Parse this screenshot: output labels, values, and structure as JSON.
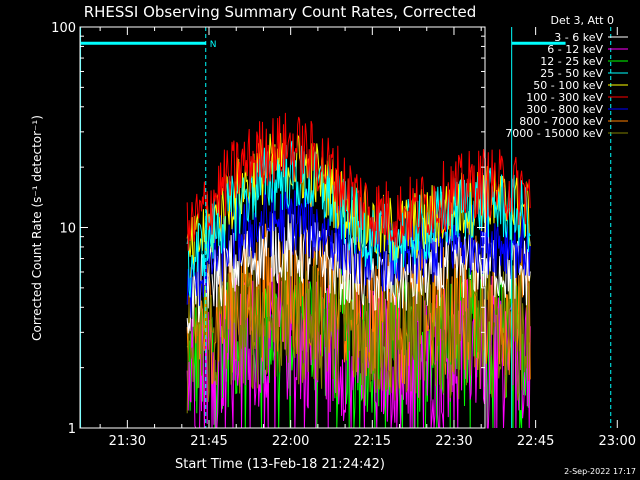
{
  "chart_data": {
    "type": "line",
    "title": "RHESSI Observing Summary Count Rates, Corrected",
    "xlabel": "Start Time (13-Feb-18 21:24:42)",
    "ylabel": "Corrected Count Rate (s⁻¹ detector⁻¹)",
    "yscale": "log",
    "ylim": [
      1,
      100
    ],
    "xlim_minutes": [
      21.3,
      95.7
    ],
    "x_ticks": [
      {
        "label": "21:30",
        "min": 30
      },
      {
        "label": "21:45",
        "min": 45
      },
      {
        "label": "22:00",
        "min": 60
      },
      {
        "label": "22:15",
        "min": 75
      },
      {
        "label": "22:30",
        "min": 90
      },
      {
        "label": "22:45",
        "min": 105
      },
      {
        "label": "23:00",
        "min": 120
      }
    ],
    "y_ticks": [
      {
        "label": "1",
        "value": 1
      },
      {
        "label": "10",
        "value": 10
      },
      {
        "label": "100",
        "value": 100
      }
    ],
    "legend_header": "Det 3, Att 0",
    "legend_position": "right",
    "series": [
      {
        "name": "3 - 6 keV",
        "color": "#ffffff",
        "points": [
          [
            41,
            4.0
          ],
          [
            45,
            5.5
          ],
          [
            50,
            6.5
          ],
          [
            55,
            7.8
          ],
          [
            60,
            8.0
          ],
          [
            65,
            7.2
          ],
          [
            70,
            6.0
          ],
          [
            75,
            5.5
          ],
          [
            80,
            5.4
          ],
          [
            85,
            5.8
          ],
          [
            90,
            6.5
          ],
          [
            95,
            6.8
          ],
          [
            100,
            6.2
          ],
          [
            104,
            6.0
          ]
        ]
      },
      {
        "name": "6 - 12 keV",
        "color": "#ff00ff",
        "points": [
          [
            41,
            1.8
          ],
          [
            45,
            2.2
          ],
          [
            50,
            2.6
          ],
          [
            55,
            2.8
          ],
          [
            60,
            2.9
          ],
          [
            65,
            2.7
          ],
          [
            70,
            2.4
          ],
          [
            75,
            2.3
          ],
          [
            80,
            2.3
          ],
          [
            85,
            2.4
          ],
          [
            90,
            2.5
          ],
          [
            95,
            2.6
          ],
          [
            100,
            2.5
          ],
          [
            104,
            2.4
          ]
        ]
      },
      {
        "name": "12 - 25 keV",
        "color": "#00ff00",
        "points": [
          [
            41,
            2.0
          ],
          [
            45,
            2.5
          ],
          [
            50,
            2.9
          ],
          [
            55,
            3.2
          ],
          [
            60,
            3.3
          ],
          [
            65,
            3.1
          ],
          [
            70,
            2.8
          ],
          [
            75,
            2.6
          ],
          [
            80,
            2.6
          ],
          [
            85,
            2.7
          ],
          [
            90,
            2.8
          ],
          [
            95,
            2.9
          ],
          [
            100,
            2.8
          ],
          [
            104,
            2.7
          ]
        ]
      },
      {
        "name": "25 - 50 keV",
        "color": "#00ffff",
        "points": [
          [
            41,
            6.0
          ],
          [
            45,
            9.0
          ],
          [
            50,
            13.0
          ],
          [
            55,
            17.0
          ],
          [
            60,
            18.5
          ],
          [
            65,
            16.0
          ],
          [
            70,
            11.5
          ],
          [
            75,
            9.0
          ],
          [
            80,
            8.8
          ],
          [
            85,
            10.0
          ],
          [
            90,
            12.0
          ],
          [
            95,
            13.5
          ],
          [
            100,
            12.5
          ],
          [
            104,
            11.0
          ]
        ]
      },
      {
        "name": "50 - 100 keV",
        "color": "#ffff00",
        "points": [
          [
            41,
            6.8
          ],
          [
            45,
            10.0
          ],
          [
            50,
            15.0
          ],
          [
            55,
            19.5
          ],
          [
            60,
            21.0
          ],
          [
            65,
            18.0
          ],
          [
            70,
            13.0
          ],
          [
            75,
            10.0
          ],
          [
            80,
            9.5
          ],
          [
            85,
            10.8
          ],
          [
            90,
            12.5
          ],
          [
            95,
            14.0
          ],
          [
            100,
            13.0
          ],
          [
            104,
            11.5
          ]
        ]
      },
      {
        "name": "100 - 300 keV",
        "color": "#ff0000",
        "points": [
          [
            41,
            9.0
          ],
          [
            45,
            13.0
          ],
          [
            50,
            19.0
          ],
          [
            55,
            24.0
          ],
          [
            60,
            25.5
          ],
          [
            65,
            22.0
          ],
          [
            70,
            16.0
          ],
          [
            75,
            12.0
          ],
          [
            80,
            11.5
          ],
          [
            85,
            13.0
          ],
          [
            90,
            15.0
          ],
          [
            95,
            17.0
          ],
          [
            100,
            16.0
          ],
          [
            104,
            14.5
          ]
        ]
      },
      {
        "name": "300 - 800 keV",
        "color": "#0000ff",
        "points": [
          [
            41,
            4.6
          ],
          [
            45,
            6.8
          ],
          [
            50,
            9.0
          ],
          [
            55,
            10.6
          ],
          [
            60,
            11.0
          ],
          [
            65,
            10.0
          ],
          [
            70,
            8.3
          ],
          [
            75,
            7.3
          ],
          [
            80,
            7.1
          ],
          [
            85,
            7.6
          ],
          [
            90,
            8.4
          ],
          [
            95,
            8.9
          ],
          [
            100,
            8.4
          ],
          [
            104,
            8.0
          ]
        ]
      },
      {
        "name": "800 - 7000 keV",
        "color": "#ff8000",
        "points": [
          [
            41,
            2.7
          ],
          [
            45,
            3.6
          ],
          [
            50,
            4.3
          ],
          [
            55,
            4.8
          ],
          [
            60,
            5.0
          ],
          [
            65,
            4.6
          ],
          [
            70,
            4.0
          ],
          [
            75,
            3.6
          ],
          [
            80,
            3.5
          ],
          [
            85,
            3.7
          ],
          [
            90,
            4.0
          ],
          [
            95,
            4.2
          ],
          [
            100,
            4.0
          ],
          [
            104,
            3.8
          ]
        ]
      },
      {
        "name": "7000 - 15000 keV",
        "color": "#808000",
        "points": [
          [
            41,
            2.3
          ],
          [
            45,
            2.8
          ],
          [
            50,
            3.2
          ],
          [
            55,
            3.5
          ],
          [
            60,
            3.6
          ],
          [
            65,
            3.4
          ],
          [
            70,
            3.1
          ],
          [
            75,
            2.9
          ],
          [
            80,
            2.9
          ],
          [
            85,
            3.0
          ],
          [
            90,
            3.1
          ],
          [
            95,
            3.2
          ],
          [
            100,
            3.1
          ],
          [
            104,
            3.0
          ]
        ]
      }
    ],
    "state_bars": {
      "color": "#00ffff",
      "bar_top_value": 83,
      "label_N": "N",
      "segments": [
        [
          21.4,
          44.4
        ],
        [
          100.6,
          110.5
        ]
      ],
      "vlines": [
        {
          "x": 21.4,
          "style": "solid"
        },
        {
          "x": 44.4,
          "style": "dashed"
        },
        {
          "x": 100.6,
          "style": "solid"
        },
        {
          "x": 118.8,
          "style": "dashed"
        }
      ]
    },
    "grid": false
  },
  "footer": {
    "timestamp": "2-Sep-2022 17:17"
  }
}
